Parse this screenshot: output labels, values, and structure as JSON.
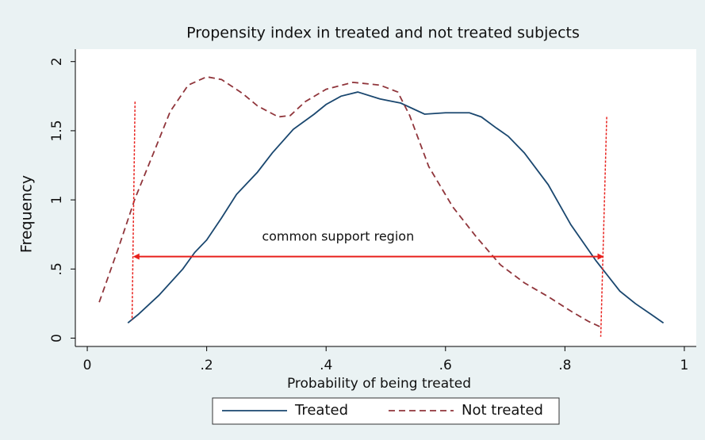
{
  "chart_data": {
    "type": "line",
    "title": "Propensity index in treated and not treated subjects",
    "x_label": "Probability of being treated",
    "y_label": "Frequency",
    "xlim": [
      -0.02,
      1.02
    ],
    "ylim": [
      -0.06,
      2.09
    ],
    "xticks": [
      0,
      {
        "value": 0.2,
        "label": ".2"
      },
      {
        "value": 0.4,
        "label": ".4"
      },
      {
        "value": 0.6,
        "label": ".6"
      },
      {
        "value": 0.8,
        "label": ".8"
      },
      1
    ],
    "yticks": [
      0,
      {
        "value": 0.5,
        "label": ".5"
      },
      1,
      1.5,
      2
    ],
    "grid": false,
    "legend": "bottom",
    "series": [
      {
        "name": "Treated",
        "color": "#1a476f",
        "dash": false,
        "x": [
          0.068,
          0.085,
          0.12,
          0.16,
          0.18,
          0.2,
          0.225,
          0.25,
          0.285,
          0.31,
          0.345,
          0.38,
          0.4,
          0.425,
          0.453,
          0.49,
          0.525,
          0.545,
          0.565,
          0.6,
          0.62,
          0.64,
          0.66,
          0.685,
          0.705,
          0.732,
          0.772,
          0.81,
          0.852,
          0.892,
          0.918,
          0.945,
          0.965
        ],
        "values": [
          0.11,
          0.17,
          0.31,
          0.5,
          0.62,
          0.71,
          0.87,
          1.04,
          1.2,
          1.34,
          1.51,
          1.62,
          1.69,
          1.75,
          1.78,
          1.73,
          1.7,
          1.66,
          1.62,
          1.63,
          1.63,
          1.63,
          1.6,
          1.52,
          1.46,
          1.34,
          1.11,
          0.82,
          0.56,
          0.34,
          0.25,
          0.17,
          0.11
        ]
      },
      {
        "name": "Not treated",
        "color": "#90353b",
        "dash": true,
        "x": [
          0.02,
          0.052,
          0.08,
          0.112,
          0.139,
          0.169,
          0.2,
          0.225,
          0.26,
          0.285,
          0.32,
          0.34,
          0.365,
          0.4,
          0.445,
          0.49,
          0.52,
          0.54,
          0.572,
          0.612,
          0.652,
          0.692,
          0.732,
          0.772,
          0.812,
          0.84,
          0.86
        ],
        "values": [
          0.26,
          0.65,
          1.01,
          1.35,
          1.64,
          1.83,
          1.89,
          1.87,
          1.77,
          1.68,
          1.6,
          1.61,
          1.71,
          1.8,
          1.85,
          1.83,
          1.78,
          1.61,
          1.24,
          0.95,
          0.73,
          0.53,
          0.4,
          0.3,
          0.19,
          0.12,
          0.08
        ]
      }
    ],
    "annotations": {
      "text": "common support region",
      "text_x": 0.42,
      "text_y": 0.73,
      "color": "#e8201c",
      "bounds": [
        {
          "x": [
            0.08,
            0.075
          ],
          "y": [
            1.71,
            0.13
          ]
        },
        {
          "x": [
            0.87,
            0.86
          ],
          "y": [
            1.6,
            0.01
          ]
        }
      ],
      "arrow": {
        "x": [
          0.082,
          0.86
        ],
        "y": 0.59
      }
    }
  }
}
